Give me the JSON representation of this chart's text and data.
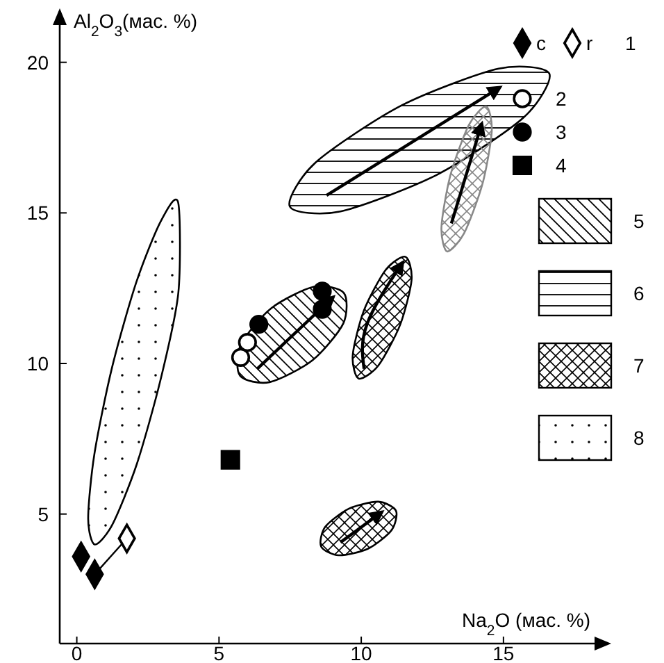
{
  "chart_data": {
    "type": "scatter",
    "xlabel": "Na$_{2}$O (мас. %)",
    "ylabel": "Al$_{2}$O$_{3}$(мас. %)",
    "xlim": [
      -0.6,
      18.3
    ],
    "ylim": [
      0.7,
      21.7
    ],
    "xticks": [
      0,
      5,
      10,
      15
    ],
    "yticks": [
      5,
      10,
      15,
      20
    ],
    "grid": false,
    "legend": "right",
    "annotations": [
      "1"
    ],
    "series": [
      {
        "name": "c",
        "marker": "diamond",
        "color": "#000000",
        "x": [
          0.15,
          0.63
        ],
        "values": [
          3.59,
          3.0
        ]
      },
      {
        "name": "r",
        "marker": "diamond",
        "color": "#ffffff",
        "x": [
          1.76
        ],
        "values": [
          4.19
        ]
      },
      {
        "name": "2",
        "marker": "circle",
        "color": "#ffffff",
        "x": [
          5.76,
          6.0
        ],
        "values": [
          10.2,
          10.7
        ]
      },
      {
        "name": "3",
        "marker": "circle",
        "color": "#000000",
        "x": [
          6.4,
          8.63,
          8.63
        ],
        "values": [
          11.3,
          12.4,
          11.8
        ]
      },
      {
        "name": "4",
        "marker": "square",
        "color": "#000000",
        "x": [
          5.4
        ],
        "values": [
          6.8
        ]
      },
      {
        "name": "5",
        "type": "area",
        "color": "#000000",
        "x": [
          9.39,
          9.37,
          8.29,
          6.78,
          5.74,
          5.76,
          6.83,
          8.34,
          9.39
        ],
        "values": [
          12.34,
          11.33,
          10.11,
          9.38,
          9.59,
          10.61,
          11.83,
          12.55,
          12.34
        ]
      },
      {
        "name": "6",
        "type": "area",
        "color": "#000000",
        "x": [
          16.61,
          15.71,
          12.67,
          9.27,
          7.49,
          8.39,
          11.42,
          14.83,
          16.61
        ],
        "values": [
          19.63,
          18.17,
          16.27,
          15.05,
          15.21,
          16.67,
          18.57,
          19.79,
          19.63
        ]
      },
      {
        "name": "7",
        "type": "area",
        "color": "#000000",
        "x": [
          11.56,
          11.77,
          11.37,
          10.6,
          9.91,
          9.7,
          10.09,
          10.87,
          11.56
        ],
        "values": [
          13.54,
          12.78,
          11.29,
          9.93,
          9.5,
          10.26,
          11.75,
          13.12,
          13.54
        ]
      },
      {
        "type": "area",
        "color": "#888888",
        "x": [
          14.39,
          14.59,
          14.27,
          13.62,
          13.02,
          12.82,
          13.14,
          13.79,
          14.39
        ],
        "values": [
          18.53,
          17.73,
          15.99,
          14.33,
          13.72,
          14.53,
          16.27,
          17.93,
          18.53
        ]
      },
      {
        "type": "area",
        "color": "#000000",
        "x": [
          11.22,
          11.07,
          10.24,
          9.21,
          8.59,
          8.73,
          9.57,
          10.6,
          11.22
        ],
        "values": [
          5.11,
          4.47,
          3.85,
          3.63,
          3.92,
          4.57,
          5.18,
          5.41,
          5.11
        ]
      },
      {
        "name": "8",
        "type": "area",
        "color": "#000000",
        "x": [
          3.56,
          3.57,
          2.95,
          2.11,
          1.25,
          0.63,
          0.4,
          0.62,
          1.24,
          2.09,
          2.94,
          3.56
        ],
        "values": [
          15.36,
          12.35,
          9.48,
          6.66,
          4.65,
          3.99,
          4.85,
          7.0,
          9.87,
          12.69,
          14.7,
          15.36
        ]
      },
      {
        "type": "line",
        "color": "#000000",
        "x": [
          6.34,
          9.02
        ],
        "values": [
          9.82,
          12.21
        ]
      },
      {
        "type": "line",
        "color": "#000000",
        "x": [
          8.78,
          14.88
        ],
        "values": [
          15.58,
          19.17
        ]
      },
      {
        "type": "line",
        "color": "#000000",
        "x": [
          13.17,
          14.24
        ],
        "values": [
          14.65,
          17.97
        ]
      },
      {
        "type": "line",
        "color": "#000000",
        "x": [
          10.1,
          10.2,
          11.46
        ],
        "values": [
          9.82,
          11.3,
          13.36
        ]
      },
      {
        "type": "line",
        "color": "#000000",
        "x": [
          9.27,
          10.73
        ],
        "values": [
          4.06,
          5.07
        ]
      },
      {
        "type": "line",
        "marker": "none",
        "color": "#000000",
        "x": [
          0.63,
          1.76
        ],
        "values": [
          3.0,
          4.19
        ]
      }
    ]
  }
}
